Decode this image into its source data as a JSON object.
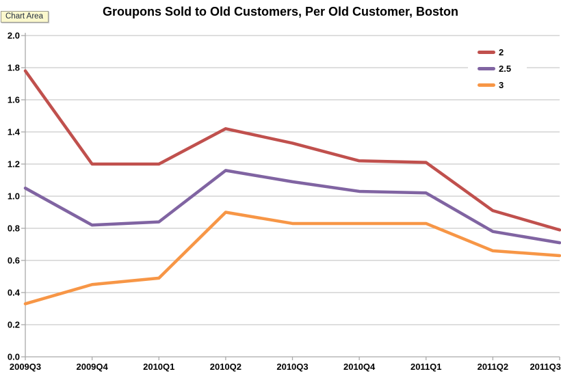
{
  "tooltip": {
    "label": "Chart Area"
  },
  "colors": {
    "gridline": "#c9c9c9",
    "axis": "#a9a9a9",
    "text": "#000000",
    "background": "#ffffff",
    "tooltip_bg": "#fbf8cd"
  },
  "chart_data": {
    "type": "line",
    "title": "Groupons Sold to Old Customers, Per Old Customer, Boston",
    "categories": [
      "2009Q3",
      "2009Q4",
      "2010Q1",
      "2010Q2",
      "2010Q3",
      "2010Q4",
      "2011Q1",
      "2011Q2",
      "2011Q3"
    ],
    "series": [
      {
        "name": "2",
        "color": "#c0504d",
        "values": [
          1.78,
          1.2,
          1.2,
          1.42,
          1.33,
          1.22,
          1.21,
          0.91,
          0.79
        ]
      },
      {
        "name": "2.5",
        "color": "#8064a2",
        "values": [
          1.05,
          0.82,
          0.84,
          1.16,
          1.09,
          1.03,
          1.02,
          0.78,
          0.71
        ]
      },
      {
        "name": "3",
        "color": "#f79646",
        "values": [
          0.33,
          0.45,
          0.49,
          0.9,
          0.83,
          0.83,
          0.83,
          0.66,
          0.63
        ]
      }
    ],
    "xlabel": "",
    "ylabel": "",
    "ylim": [
      0.0,
      2.0
    ],
    "ytick_step": 0.2,
    "ytick_labels": [
      "0.0",
      "0.2",
      "0.4",
      "0.6",
      "0.8",
      "1.0",
      "1.2",
      "1.4",
      "1.6",
      "1.8",
      "2.0"
    ],
    "grid": true,
    "legend_position": "top-right"
  }
}
